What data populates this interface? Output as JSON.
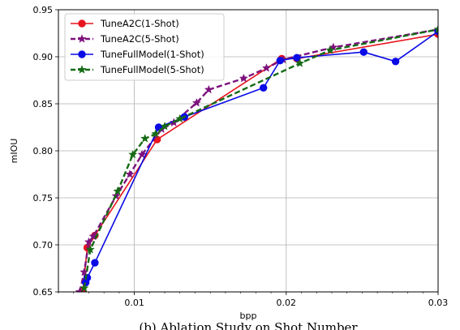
{
  "chart_data": {
    "type": "line",
    "xlabel": "bpp",
    "ylabel": "mIOU",
    "xlim": [
      0.005,
      0.03
    ],
    "ylim": [
      0.65,
      0.95
    ],
    "x_ticks": [
      0.01,
      0.02,
      0.03
    ],
    "x_tick_labels": [
      "0.01",
      "0.02",
      "0.03"
    ],
    "y_ticks": [
      0.65,
      0.7,
      0.75,
      0.8,
      0.85,
      0.9,
      0.95
    ],
    "y_tick_labels": [
      "0.65",
      "0.70",
      "0.75",
      "0.80",
      "0.85",
      "0.90",
      "0.95"
    ],
    "grid": true,
    "legend_position": "top-left",
    "caption": "(b) Ablation Study on Shot Number",
    "series": [
      {
        "name": "TuneA2C(1-Shot)",
        "color": "#e8141e",
        "dash": "solid",
        "marker": "circle",
        "x": [
          0.0066,
          0.0069,
          0.0074,
          0.0115,
          0.0197,
          0.0207,
          0.03
        ],
        "y": [
          0.65,
          0.697,
          0.71,
          0.812,
          0.898,
          0.898,
          0.924
        ]
      },
      {
        "name": "TuneA2C(5-Shot)",
        "color": "#7d117d",
        "dash": "dashed",
        "marker": "star",
        "x": [
          0.0064,
          0.0067,
          0.007,
          0.0073,
          0.0088,
          0.0097,
          0.0105,
          0.0118,
          0.0126,
          0.0141,
          0.0149,
          0.0172,
          0.0187,
          0.0198,
          0.0231,
          0.03
        ],
        "y": [
          0.65,
          0.671,
          0.703,
          0.709,
          0.752,
          0.775,
          0.796,
          0.823,
          0.83,
          0.851,
          0.865,
          0.877,
          0.888,
          0.897,
          0.91,
          0.929
        ]
      },
      {
        "name": "TuneFullModel(1-Shot)",
        "color": "#0a0ae6",
        "dash": "solid",
        "marker": "circle",
        "x": [
          0.0068,
          0.0069,
          0.0074,
          0.0116,
          0.0133,
          0.0185,
          0.0196,
          0.0207,
          0.0251,
          0.0272,
          0.03
        ],
        "y": [
          0.66,
          0.665,
          0.681,
          0.825,
          0.836,
          0.867,
          0.896,
          0.899,
          0.905,
          0.895,
          0.927
        ]
      },
      {
        "name": "TuneFullModel(5-Shot)",
        "color": "#156b15",
        "dash": "dashed",
        "marker": "star",
        "x": [
          0.0067,
          0.0071,
          0.0089,
          0.0099,
          0.0107,
          0.0114,
          0.012,
          0.013,
          0.0209,
          0.0229,
          0.03
        ],
        "y": [
          0.654,
          0.695,
          0.757,
          0.796,
          0.813,
          0.818,
          0.826,
          0.834,
          0.893,
          0.907,
          0.929
        ]
      }
    ]
  }
}
